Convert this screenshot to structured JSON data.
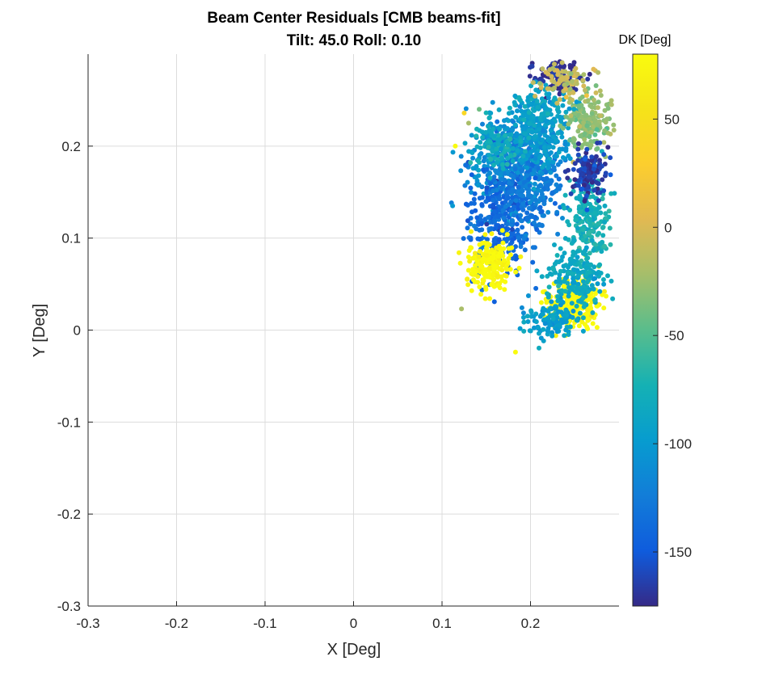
{
  "chart_data": {
    "type": "scatter",
    "title": "Beam Center Residuals [CMB beams-fit]",
    "subtitle": "Tilt: 45.0  Roll: 0.10",
    "xlabel": "X [Deg]",
    "ylabel": "Y [Deg]",
    "xlim": [
      -0.3,
      0.3
    ],
    "ylim": [
      -0.3,
      0.3
    ],
    "x_ticks": [
      -0.3,
      -0.2,
      -0.1,
      0,
      0.1,
      0.2
    ],
    "x_tick_labels": [
      "-0.3",
      "-0.2",
      "-0.1",
      "0",
      "0.1",
      "0.2"
    ],
    "y_ticks": [
      -0.3,
      -0.2,
      -0.1,
      0,
      0.1,
      0.2
    ],
    "y_tick_labels": [
      "-0.3",
      "-0.2",
      "-0.1",
      "0",
      "0.1",
      "0.2"
    ],
    "grid": true,
    "colormap": "parula",
    "colorbar": {
      "title": "DK [Deg]",
      "range": [
        -175,
        80
      ],
      "ticks": [
        50,
        0,
        -50,
        -100,
        -150
      ],
      "tick_labels": [
        "50",
        "0",
        "-50",
        "-100",
        "-150"
      ]
    },
    "clusters": [
      {
        "center": [
          0.17,
          0.18
        ],
        "spread": [
          0.045,
          0.06
        ],
        "dk": -110,
        "count": 300
      },
      {
        "center": [
          0.165,
          0.12
        ],
        "spread": [
          0.04,
          0.07
        ],
        "dk": -140,
        "count": 300
      },
      {
        "center": [
          0.2,
          0.16
        ],
        "spread": [
          0.04,
          0.06
        ],
        "dk": -125,
        "count": 280
      },
      {
        "center": [
          0.21,
          0.21
        ],
        "spread": [
          0.04,
          0.04
        ],
        "dk": -100,
        "count": 220
      },
      {
        "center": [
          0.155,
          0.07
        ],
        "spread": [
          0.03,
          0.03
        ],
        "dk": 80,
        "count": 200
      },
      {
        "center": [
          0.25,
          0.03
        ],
        "spread": [
          0.03,
          0.03
        ],
        "dk": 80,
        "count": 260
      },
      {
        "center": [
          0.265,
          0.12
        ],
        "spread": [
          0.025,
          0.05
        ],
        "dk": -75,
        "count": 200
      },
      {
        "center": [
          0.25,
          0.055
        ],
        "spread": [
          0.035,
          0.04
        ],
        "dk": -85,
        "count": 180
      },
      {
        "center": [
          0.265,
          0.225
        ],
        "spread": [
          0.025,
          0.04
        ],
        "dk": -30,
        "count": 180
      },
      {
        "center": [
          0.265,
          0.17
        ],
        "spread": [
          0.02,
          0.03
        ],
        "dk": -165,
        "count": 140
      },
      {
        "center": [
          0.23,
          0.275
        ],
        "spread": [
          0.03,
          0.02
        ],
        "dk": -170,
        "count": 120
      },
      {
        "center": [
          0.21,
          0.24
        ],
        "spread": [
          0.035,
          0.03
        ],
        "dk": -90,
        "count": 120
      },
      {
        "center": [
          0.16,
          0.2
        ],
        "spread": [
          0.035,
          0.03
        ],
        "dk": -80,
        "count": 100
      },
      {
        "center": [
          0.22,
          0.01
        ],
        "spread": [
          0.04,
          0.02
        ],
        "dk": -95,
        "count": 120
      },
      {
        "center": [
          0.24,
          0.27
        ],
        "spread": [
          0.035,
          0.025
        ],
        "dk": -10,
        "count": 80
      }
    ],
    "outliers": [
      {
        "x": 0.115,
        "y": 0.2,
        "dk": 80
      },
      {
        "x": 0.13,
        "y": 0.225,
        "dk": -20
      },
      {
        "x": 0.122,
        "y": 0.023,
        "dk": -20
      },
      {
        "x": 0.183,
        "y": -0.024,
        "dk": 80
      },
      {
        "x": 0.142,
        "y": 0.24,
        "dk": -40
      },
      {
        "x": 0.125,
        "y": 0.236,
        "dk": 40
      },
      {
        "x": 0.112,
        "y": 0.135,
        "dk": -100
      }
    ]
  }
}
